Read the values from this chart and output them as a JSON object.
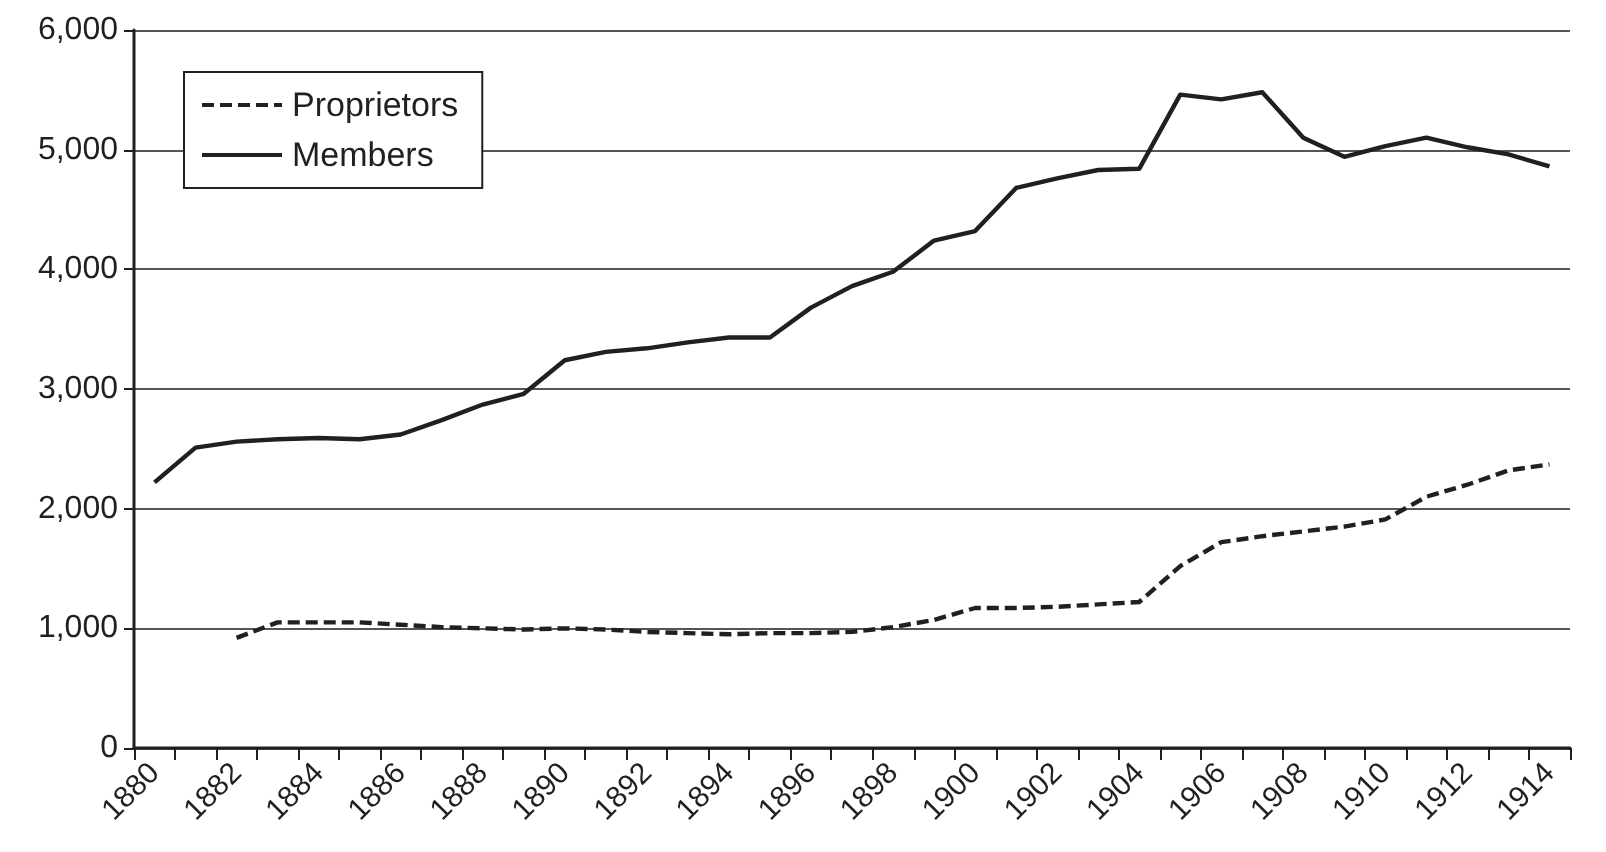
{
  "chart_data": {
    "type": "line",
    "categories": [
      "1880",
      null,
      "1882",
      null,
      "1884",
      null,
      "1886",
      null,
      "1888",
      null,
      "1890",
      null,
      "1892",
      null,
      "1894",
      null,
      "1896",
      null,
      "1898",
      null,
      "1900",
      null,
      "1902",
      null,
      "1904",
      null,
      "1906",
      null,
      "1908",
      null,
      "1910",
      null,
      "1912",
      null,
      "1914"
    ],
    "series": [
      {
        "name": "Proprietors",
        "color": "#231f20",
        "line_style": "dashed",
        "values": [
          null,
          null,
          920,
          1050,
          1050,
          1050,
          1030,
          1010,
          1000,
          990,
          1000,
          990,
          970,
          960,
          950,
          960,
          960,
          970,
          1010,
          1070,
          1170,
          1170,
          1180,
          1200,
          1220,
          1520,
          1720,
          1770,
          1810,
          1850,
          1910,
          2100,
          2200,
          2320,
          2370
        ]
      },
      {
        "name": "Members",
        "color": "#231f20",
        "line_style": "solid",
        "values": [
          2220,
          2510,
          2560,
          2580,
          2590,
          2580,
          2620,
          2740,
          2870,
          2960,
          3240,
          3310,
          3340,
          3390,
          3430,
          3430,
          3680,
          3860,
          3980,
          4240,
          4320,
          4680,
          4760,
          4830,
          4840,
          5460,
          5420,
          5480,
          5100,
          4940,
          5030,
          5100,
          5020,
          4960,
          4860
        ]
      }
    ],
    "ylim": [
      0,
      6000
    ],
    "yticks": [
      0,
      {
        "value": 1000,
        "label": "1,000"
      },
      {
        "value": 2000,
        "label": "2,000"
      },
      {
        "value": 3000,
        "label": "3,000"
      },
      {
        "value": 4000,
        "label": "4,000"
      },
      {
        "value": 5000,
        "label": "5,000"
      },
      {
        "value": 6000,
        "label": "6,000"
      }
    ],
    "grid": "y",
    "legend": "top left",
    "marker": "none"
  }
}
